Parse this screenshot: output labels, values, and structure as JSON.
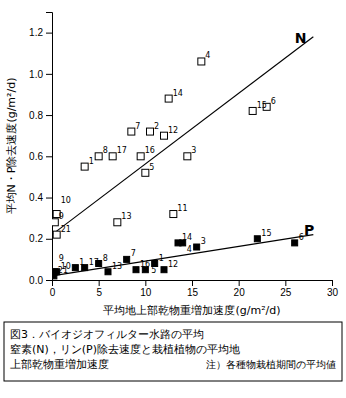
{
  "chart_data": {
    "type": "scatter",
    "title": "図3．バイオジオフィルター水路の平均\n窒素(N)，リン(P)除去速度と栽植植物の平均地\n上部乾物重増加速度",
    "xlabel": "平均地上部乾物重増加速度(g/m²/d)",
    "ylabel": "平均N・P除去速度(g/m²/d)",
    "xlim": [
      0,
      30
    ],
    "ylim": [
      0,
      1.3
    ],
    "xticks": [
      0,
      5,
      10,
      15,
      20,
      25,
      30
    ],
    "yticks": [
      {
        "value": 0,
        "label": "0.0"
      },
      0.2,
      0.4,
      0.6,
      0.8,
      {
        "value": 1.0,
        "label": "1.0"
      },
      1.2
    ],
    "series": [
      {
        "type": "scatter",
        "marker": "open-square",
        "x": [
          0.3,
          0.5,
          0.5,
          3.5,
          5.0,
          6.5,
          7.0,
          8.5,
          9.5,
          10.0,
          10.5,
          12.0,
          12.5,
          13.0,
          14.5,
          16.0,
          21.5,
          23.0
        ],
        "values": [
          0.28,
          0.32,
          0.22,
          0.55,
          0.6,
          0.6,
          0.28,
          0.72,
          0.6,
          0.52,
          0.72,
          0.7,
          0.88,
          0.32,
          0.6,
          1.06,
          0.82,
          0.84
        ],
        "labels": [
          "9",
          "10",
          "21",
          "1",
          "8",
          "17",
          "13",
          "7",
          "16",
          "5",
          "2",
          "12",
          "14",
          "11",
          "3",
          "4",
          "15",
          "6"
        ]
      },
      {
        "type": "scatter",
        "marker": "square",
        "x": [
          0.2,
          0.3,
          0.5,
          2.5,
          3.5,
          5.0,
          6.0,
          8.0,
          9.0,
          10.0,
          11.0,
          12.0,
          13.5,
          14.0,
          15.5,
          22.0,
          26.0
        ],
        "values": [
          0.02,
          0.04,
          0.04,
          0.06,
          0.06,
          0.08,
          0.04,
          0.1,
          0.05,
          0.05,
          0.08,
          0.05,
          0.18,
          0.18,
          0.16,
          0.2,
          0.18
        ],
        "labels": [
          "21",
          "9",
          "10",
          "1",
          "17",
          "8",
          "13",
          "7",
          "16",
          "5",
          "1",
          "12",
          "14",
          "4",
          "3",
          "15",
          "6"
        ]
      },
      {
        "type": "line",
        "line_style": "solid",
        "x": [
          0,
          28
        ],
        "values": [
          0.22,
          1.18
        ]
      },
      {
        "type": "line",
        "line_style": "solid",
        "x": [
          0,
          28
        ],
        "values": [
          0.02,
          0.22
        ]
      }
    ],
    "annotations": [
      {
        "text": "注）各種物栽植期間の平均値"
      },
      {
        "text": "N",
        "x": 26,
        "y": 1.15
      },
      {
        "text": "P",
        "x": 27,
        "y": 0.22
      }
    ]
  }
}
